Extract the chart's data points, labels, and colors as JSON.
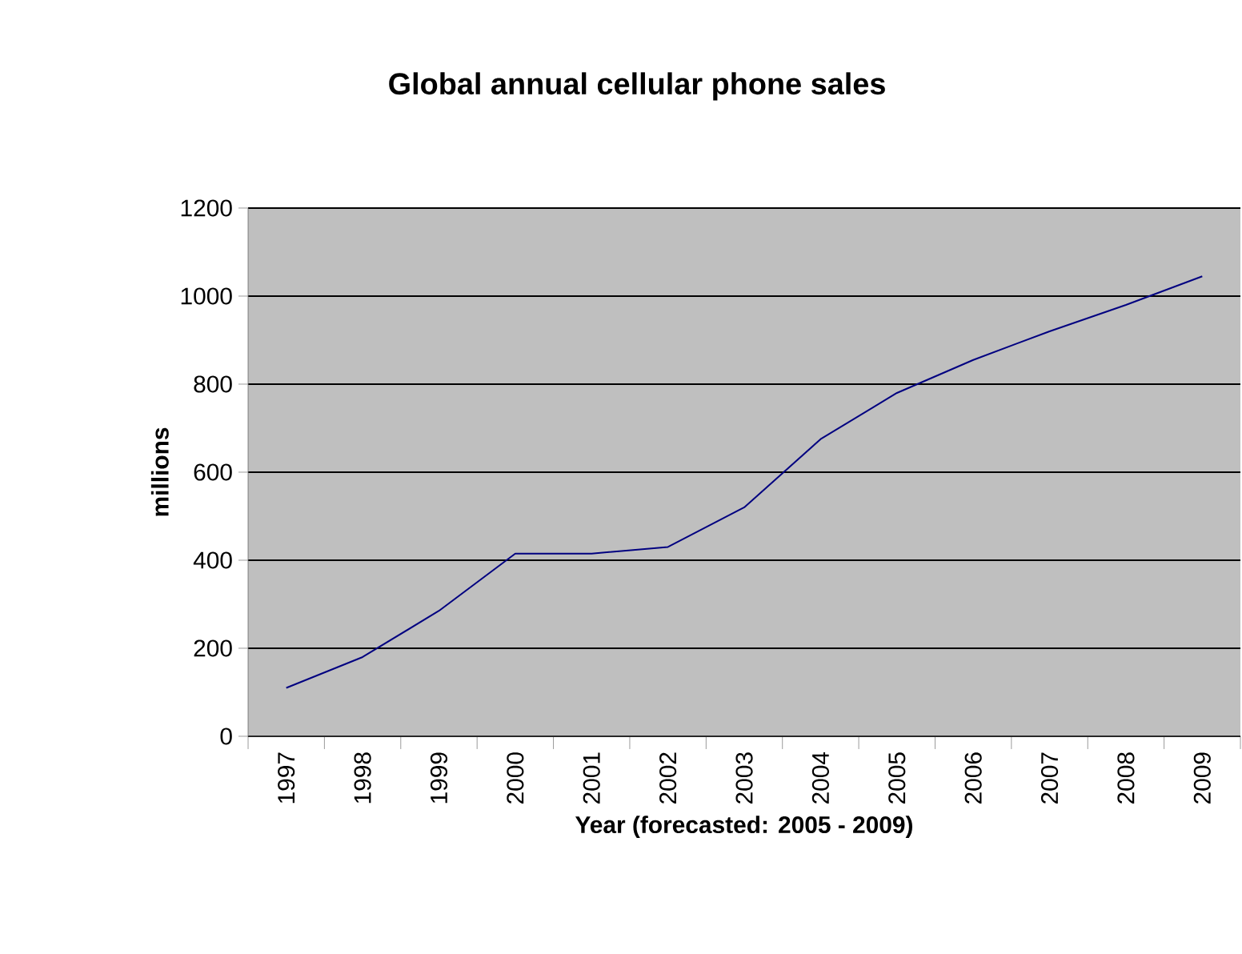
{
  "chart_data": {
    "type": "line",
    "title": "Global annual cellular phone sales",
    "xlabel": "Year (forecasted: 2005 - 2009)",
    "ylabel": "millions",
    "categories": [
      "1997",
      "1998",
      "1999",
      "2000",
      "2001",
      "2002",
      "2003",
      "2004",
      "2005",
      "2006",
      "2007",
      "2008",
      "2009"
    ],
    "series": [
      {
        "color": "#000080",
        "values": [
          110,
          180,
          285,
          415,
          415,
          430,
          520,
          675,
          780,
          855,
          920,
          980,
          1045
        ]
      }
    ],
    "ylim": [
      0,
      1200
    ],
    "yticks": [
      0,
      200,
      400,
      600,
      800,
      1000,
      1200
    ],
    "grid": "y",
    "legend": false,
    "marker": "none",
    "line_style": "solid"
  }
}
